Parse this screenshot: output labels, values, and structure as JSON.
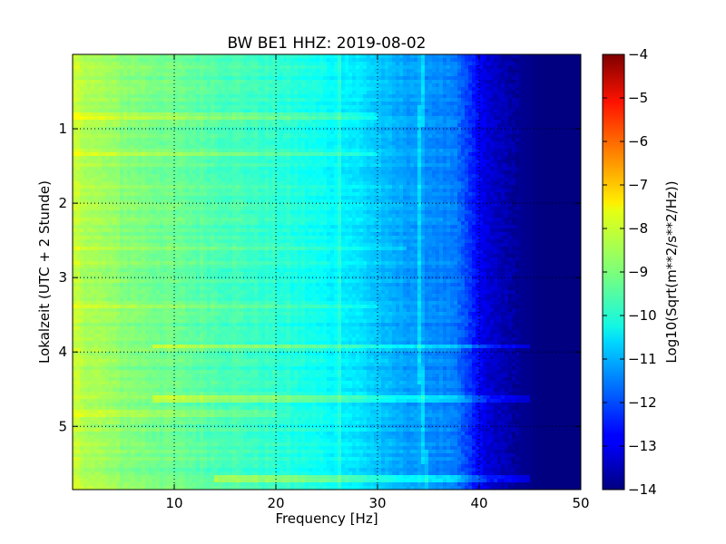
{
  "chart_data": {
    "type": "heatmap",
    "title": "BW BE1 HHZ: 2019-08-02",
    "xlabel": "Frequency [Hz]",
    "ylabel": "Lokalzeit (UTC + 2 Stunde)",
    "xlim": [
      0,
      50
    ],
    "ylim": [
      5.85,
      0
    ],
    "x_ticks": [
      10,
      20,
      30,
      40,
      50
    ],
    "y_ticks": [
      1,
      2,
      3,
      4,
      5
    ],
    "grid": true,
    "colorbar": {
      "label": "Log10(Sqrt(m**2/s**2/Hz))",
      "range": [
        -14,
        -4
      ],
      "ticks": [
        -4,
        -5,
        -6,
        -7,
        -8,
        -9,
        -10,
        -11,
        -12,
        -13,
        -14
      ],
      "tick_labels": [
        "−4",
        "−5",
        "−6",
        "−7",
        "−8",
        "−9",
        "−10",
        "−11",
        "−12",
        "−13",
        "−14"
      ],
      "colormap": "jet"
    },
    "z_profile_by_frequency": {
      "frequency_hz": [
        0,
        2,
        5,
        10,
        15,
        20,
        25,
        28,
        30,
        31,
        32,
        34,
        36,
        37,
        38,
        39,
        40,
        41,
        42,
        43,
        44,
        45,
        46,
        50
      ],
      "log10_value": [
        -8.3,
        -8.6,
        -8.9,
        -9.2,
        -9.5,
        -9.8,
        -10.2,
        -10.5,
        -10.8,
        -11.0,
        -11.1,
        -11.2,
        -11.4,
        -11.5,
        -11.7,
        -12.2,
        -12.8,
        -13.2,
        -13.4,
        -13.6,
        -13.8,
        -13.9,
        -14.0,
        -14.0
      ]
    },
    "highlighted_features": [
      {
        "type": "horizontal_band",
        "time_hours": 3.93,
        "freq_range_hz": [
          8,
          45
        ],
        "delta": 0.8
      },
      {
        "type": "horizontal_band",
        "time_hours": 4.64,
        "freq_range_hz": [
          8,
          45
        ],
        "delta": 0.7
      },
      {
        "type": "horizontal_band",
        "time_hours": 5.71,
        "freq_range_hz": [
          14,
          45
        ],
        "delta": 0.8
      },
      {
        "type": "horizontal_band",
        "time_hours": 0.82,
        "freq_range_hz": [
          0,
          30
        ],
        "delta": 0.5
      },
      {
        "type": "horizontal_band",
        "time_hours": 1.33,
        "freq_range_hz": [
          0,
          30
        ],
        "delta": 0.4
      },
      {
        "type": "horizontal_band",
        "time_hours": 2.6,
        "freq_range_hz": [
          0,
          33
        ],
        "delta": 0.4
      },
      {
        "type": "horizontal_band",
        "time_hours": 3.4,
        "freq_range_hz": [
          0,
          30
        ],
        "delta": 0.4
      },
      {
        "type": "horizontal_band",
        "time_hours": 4.82,
        "freq_range_hz": [
          0,
          20
        ],
        "delta": 0.3
      },
      {
        "type": "vertical_line",
        "freq_hz": 26.2,
        "delta": 0.5
      },
      {
        "type": "drifting_line",
        "freq_hz_start": 34.5,
        "freq_hz_end": 34.8,
        "delta": 0.5
      }
    ]
  }
}
